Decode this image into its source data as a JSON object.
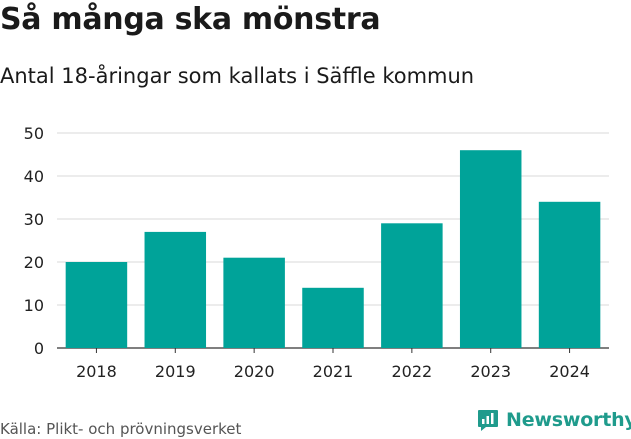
{
  "chart_data": {
    "type": "bar",
    "title": "Så många ska mönstra",
    "subtitle": "Antal 18-åringar som kallats i Säffle kommun",
    "categories": [
      "2018",
      "2019",
      "2020",
      "2021",
      "2022",
      "2023",
      "2024"
    ],
    "values": [
      20,
      27,
      21,
      14,
      29,
      46,
      34
    ],
    "ylim": [
      0,
      50
    ],
    "yticks": [
      0,
      10,
      20,
      30,
      40,
      50
    ],
    "xlabel": "",
    "ylabel": "",
    "grid": true,
    "bar_color": "#00a399"
  },
  "footer": {
    "source": "Källa: Plikt- och prövningsverket",
    "brand": "Newsworthy",
    "brand_color": "#1f9b8c"
  }
}
